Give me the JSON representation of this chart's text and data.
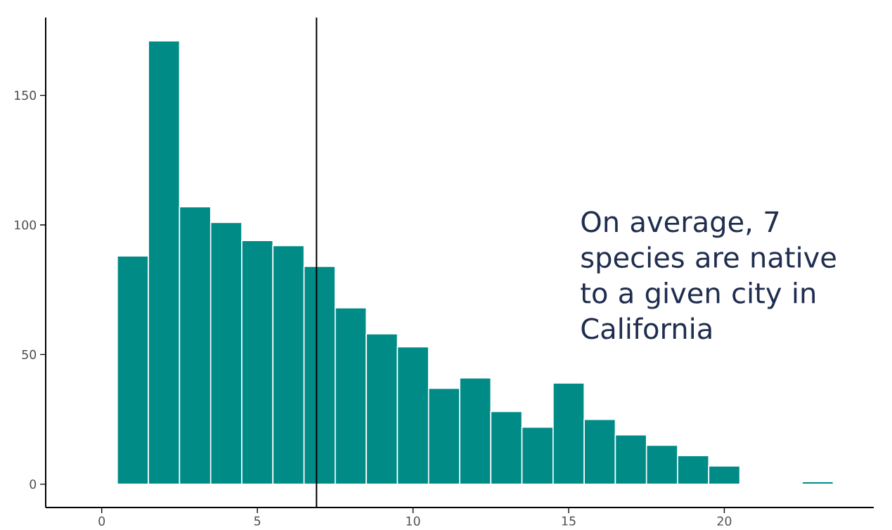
{
  "chart_data": {
    "type": "histogram",
    "bins": [
      -0.5,
      0.5,
      1.5,
      2.5,
      3.5,
      4.5,
      5.5,
      6.5,
      7.5,
      8.5,
      9.5,
      10.5,
      11.5,
      12.5,
      13.5,
      14.5,
      15.5,
      16.5,
      17.5,
      18.5,
      19.5,
      20.5,
      21.5,
      22.5,
      23.5
    ],
    "values": [
      0,
      88,
      171,
      107,
      101,
      94,
      92,
      84,
      68,
      58,
      53,
      37,
      41,
      28,
      22,
      39,
      25,
      19,
      15,
      11,
      7,
      0,
      0,
      1
    ],
    "color": "#008b87",
    "xlim": [
      -1.8,
      24.8
    ],
    "xticks": [
      0,
      5,
      10,
      15,
      20
    ],
    "ylim": [
      -9,
      180
    ],
    "yticks": [
      0,
      50,
      100,
      150
    ],
    "ref_lines": [
      {
        "axis": "x",
        "value": 6.9,
        "color": "#000000"
      }
    ],
    "annotations": [
      "On average, 7 species are native to a given city in California"
    ]
  }
}
